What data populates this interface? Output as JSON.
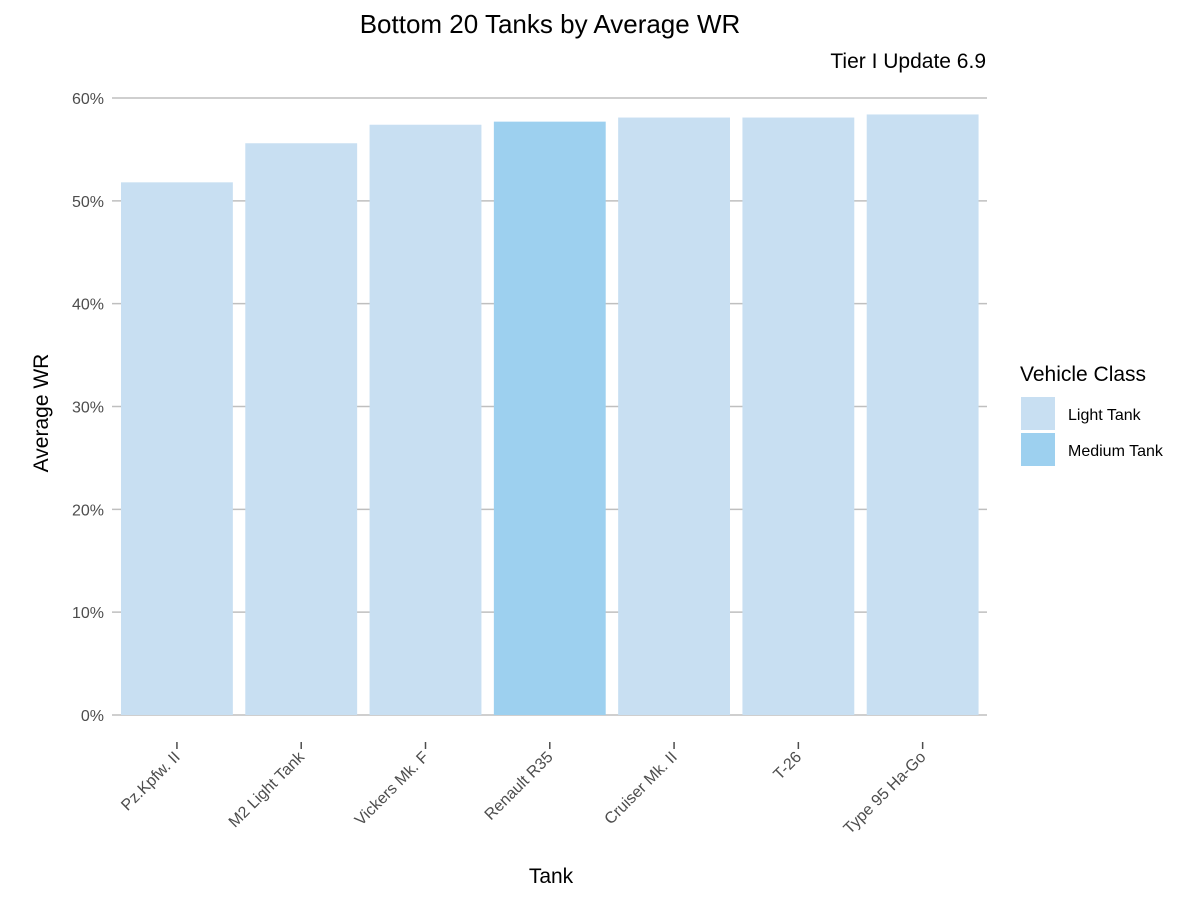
{
  "chart_data": {
    "type": "bar",
    "title": "Bottom 20 Tanks by Average WR",
    "subtitle": "Tier I Update 6.9",
    "xlabel": "Tank",
    "ylabel": "Average WR",
    "categories": [
      "Pz.Kpfw. II",
      "M2 Light Tank",
      "Vickers Mk. F",
      "Renault R35",
      "Cruiser Mk. II",
      "T-26",
      "Type 95 Ha-Go"
    ],
    "values": [
      51.8,
      55.6,
      57.4,
      57.7,
      58.1,
      58.1,
      58.4
    ],
    "classes": [
      "Light Tank",
      "Light Tank",
      "Light Tank",
      "Medium Tank",
      "Light Tank",
      "Light Tank",
      "Light Tank"
    ],
    "ylim": [
      0,
      60
    ],
    "yticks": [
      0,
      10,
      20,
      30,
      40,
      50,
      60
    ],
    "ytick_labels": [
      "0%",
      "10%",
      "20%",
      "30%",
      "40%",
      "50%",
      "60%"
    ],
    "grid": true,
    "legend": {
      "title": "Vehicle Class",
      "position": "right",
      "entries": [
        {
          "label": "Light Tank",
          "color": "#c8dff2"
        },
        {
          "label": "Medium Tank",
          "color": "#9dd0ef"
        }
      ]
    },
    "colors": {
      "grid": "#bfbfbf",
      "axis": "#b3b3b3",
      "tick_text": "#4d4d4d"
    }
  }
}
